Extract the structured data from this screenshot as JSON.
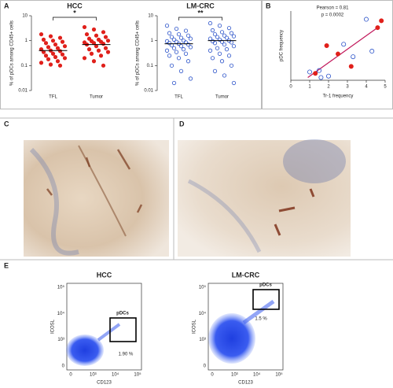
{
  "panel_labels": [
    "A",
    "B",
    "C",
    "D",
    "E"
  ],
  "chart_data": [
    {
      "type": "strip",
      "title": "HCC",
      "ylabel": "% of pDCs among CD45+ cells",
      "categories": [
        "TFL",
        "Tumor"
      ],
      "log": true,
      "ylim": [
        0.01,
        10
      ],
      "yticks": [
        0.01,
        0.1,
        1,
        10
      ],
      "significance": "*",
      "series": [
        {
          "color": "#e0201b",
          "marker": "filled",
          "median": 0.4,
          "values": [
            1.8,
            1.5,
            1.3,
            1.1,
            1.0,
            0.9,
            0.8,
            0.7,
            0.6,
            0.55,
            0.5,
            0.45,
            0.4,
            0.38,
            0.35,
            0.3,
            0.28,
            0.25,
            0.22,
            0.2,
            0.18,
            0.15,
            0.13,
            0.11,
            0.1
          ]
        },
        {
          "color": "#e0201b",
          "marker": "filled",
          "median": 0.7,
          "values": [
            3.5,
            2.8,
            2.2,
            1.8,
            1.6,
            1.4,
            1.2,
            1.1,
            1.0,
            0.95,
            0.9,
            0.85,
            0.8,
            0.75,
            0.7,
            0.6,
            0.5,
            0.45,
            0.4,
            0.35,
            0.3,
            0.25,
            0.2,
            0.15,
            0.1
          ]
        }
      ]
    },
    {
      "type": "strip",
      "title": "LM-CRC",
      "ylabel": "% of pDCs among CD45+ cells",
      "categories": [
        "TFL",
        "Tumor"
      ],
      "log": true,
      "ylim": [
        0.01,
        10
      ],
      "yticks": [
        0.01,
        0.1,
        1,
        10
      ],
      "significance": "**",
      "series": [
        {
          "color": "#2a52c9",
          "marker": "open",
          "median": 0.75,
          "values": [
            4,
            3,
            2.5,
            2,
            1.8,
            1.6,
            1.4,
            1.3,
            1.2,
            1.1,
            1.0,
            0.95,
            0.9,
            0.85,
            0.8,
            0.75,
            0.7,
            0.65,
            0.6,
            0.55,
            0.5,
            0.45,
            0.4,
            0.35,
            0.3,
            0.25,
            0.2,
            0.15,
            0.1,
            0.06,
            0.03,
            0.02
          ]
        },
        {
          "color": "#2a52c9",
          "marker": "open",
          "median": 1.0,
          "values": [
            5,
            4,
            3.2,
            2.6,
            2.2,
            2,
            1.8,
            1.6,
            1.5,
            1.4,
            1.3,
            1.2,
            1.1,
            1.0,
            0.95,
            0.9,
            0.85,
            0.8,
            0.7,
            0.6,
            0.5,
            0.45,
            0.4,
            0.3,
            0.25,
            0.2,
            0.15,
            0.1,
            0.06,
            0.04,
            0.02
          ]
        }
      ]
    },
    {
      "type": "scatter",
      "xlabel": "Tr-1 frequency",
      "ylabel": "pDC frequency",
      "annotations": [
        "Pearson = 0.81",
        "p = 0.0002"
      ],
      "xlim": [
        0,
        5
      ],
      "xticks": [
        0,
        1,
        2,
        3,
        4,
        5
      ],
      "ylim": [
        0,
        2.5
      ],
      "fit": {
        "color": "#c2185b",
        "x": [
          0.9,
          4.7
        ],
        "y": [
          0.1,
          1.95
        ]
      },
      "series": [
        {
          "color": "#e0201b",
          "marker": "filled",
          "x": [
            1.3,
            1.9,
            2.5,
            3.2,
            4.6,
            4.8
          ],
          "values": [
            0.25,
            1.25,
            0.95,
            0.5,
            1.9,
            2.15
          ]
        },
        {
          "color": "#2a52c9",
          "marker": "open",
          "x": [
            1.0,
            1.5,
            1.6,
            2.0,
            2.8,
            3.3,
            4.0,
            4.3
          ],
          "values": [
            0.3,
            0.35,
            0.1,
            0.15,
            1.3,
            0.85,
            2.2,
            1.05
          ]
        }
      ]
    }
  ],
  "flow": [
    {
      "title": "HCC",
      "xlabel": "CD123",
      "ylabel": "ICOSL",
      "gate_label": "pDCs",
      "percent": "1.90 %",
      "xticks": [
        "0",
        "10³",
        "10⁴",
        "10⁵"
      ],
      "yticks": [
        "10⁵",
        "10⁴",
        "10³",
        "0"
      ]
    },
    {
      "title": "LM-CRC",
      "xlabel": "CD123",
      "ylabel": "ICOSL",
      "gate_label": "pDCs",
      "percent": "1.5 %",
      "xticks": [
        "0",
        "10³",
        "10⁴",
        "10⁵"
      ],
      "yticks": [
        "10⁵",
        "10⁴",
        "10³",
        "0"
      ]
    }
  ]
}
